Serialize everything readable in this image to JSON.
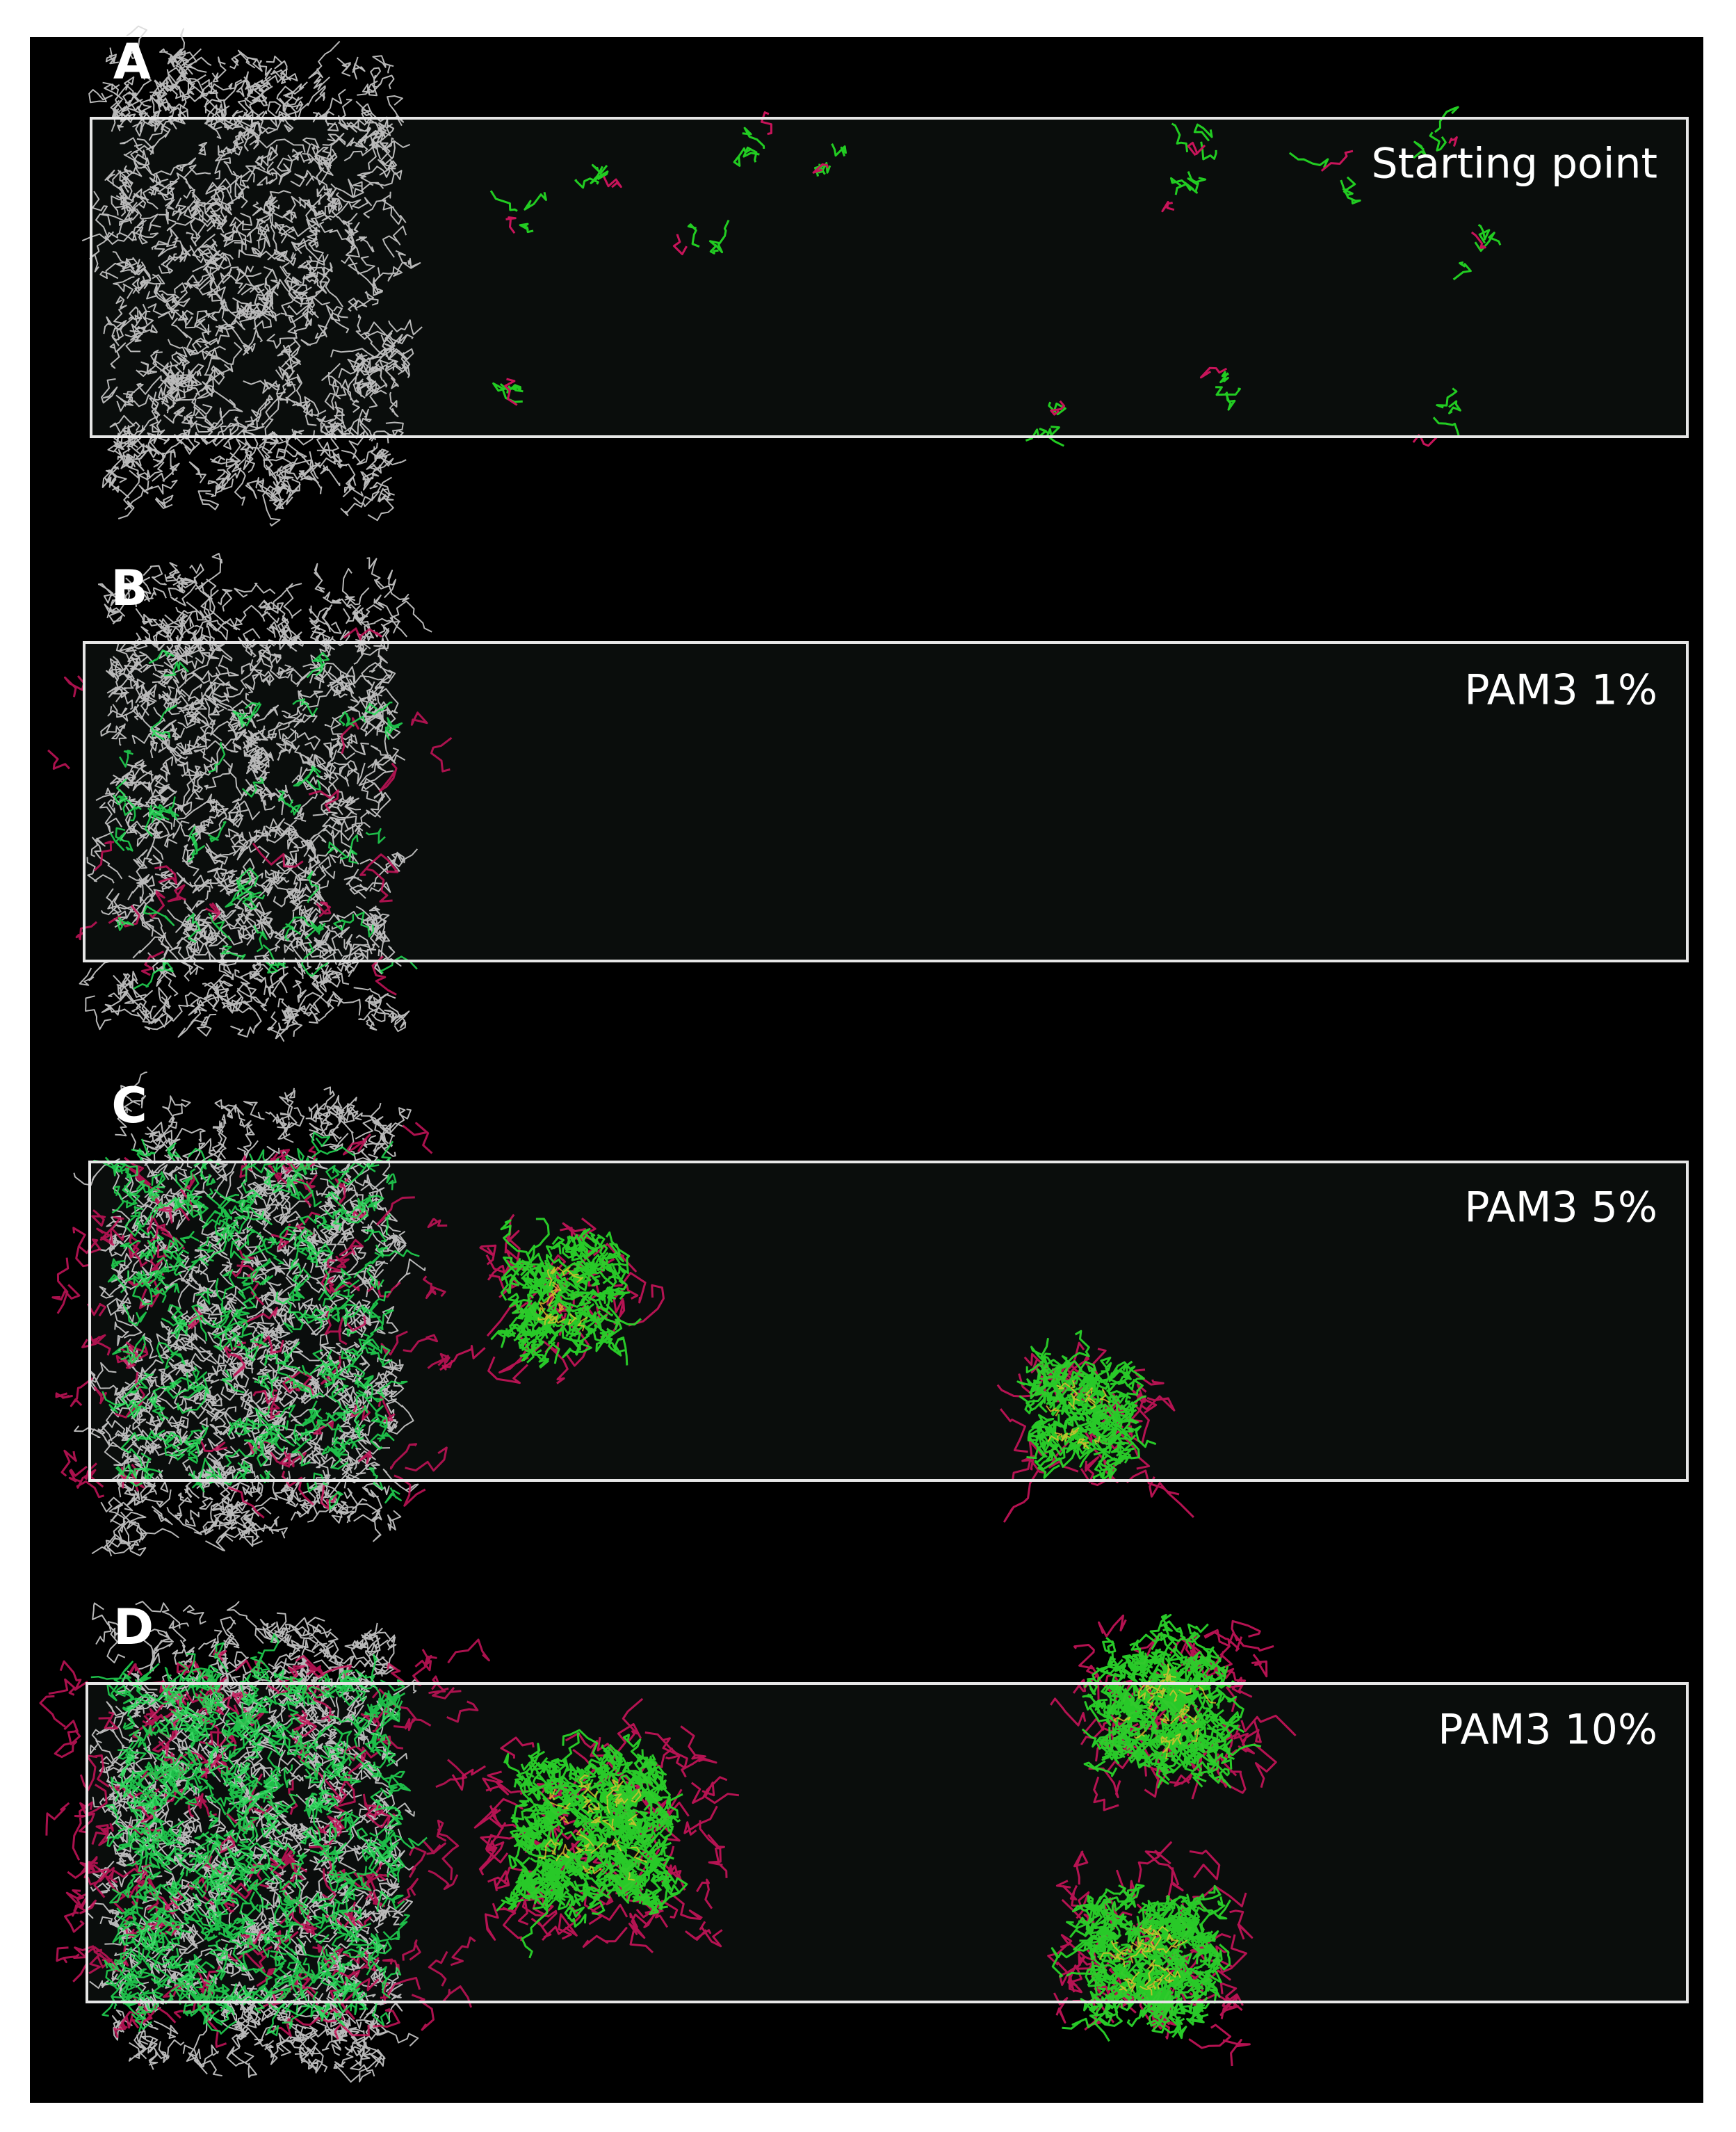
{
  "panels": [
    {
      "letter": "A",
      "label": "Starting point"
    },
    {
      "letter": "B",
      "label": "PAM3 1%"
    },
    {
      "letter": "C",
      "label": "PAM3 5%"
    },
    {
      "letter": "D",
      "label": "PAM3 10%"
    }
  ]
}
